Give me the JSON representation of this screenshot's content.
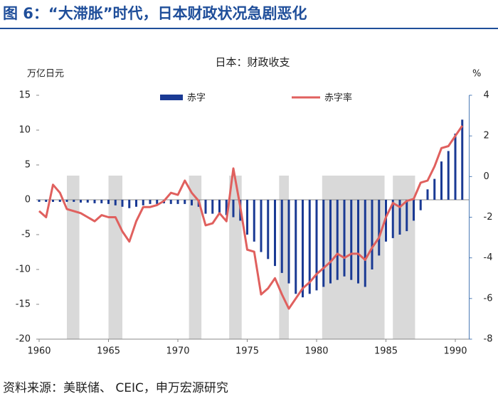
{
  "chart_data": {
    "type": "bar",
    "header": "图 6：“大滞胀”时代，日本财政状况急剧恶化",
    "title": "日本：财政收支",
    "ylabel": "万亿日元",
    "y2label": "%",
    "source": "资料来源：美联储、 CEIC，申万宏源研究",
    "xlim": [
      1960,
      1991
    ],
    "xticks": [
      1960,
      1965,
      1970,
      1975,
      1980,
      1985,
      1990
    ],
    "ylim": [
      -20,
      15
    ],
    "yticks": [
      -20,
      -15,
      -10,
      -5,
      0,
      5,
      10,
      15
    ],
    "y2lim": [
      -8,
      4
    ],
    "y2ticks": [
      -8,
      -6,
      -4,
      -2,
      0,
      2,
      4
    ],
    "shaded_periods": [
      [
        1962.0,
        1962.9
      ],
      [
        1965.0,
        1966.0
      ],
      [
        1970.8,
        1971.7
      ],
      [
        1973.7,
        1974.6
      ],
      [
        1977.3,
        1978.0
      ],
      [
        1980.4,
        1984.9
      ],
      [
        1985.5,
        1987.1
      ]
    ],
    "shade_color": "#d9d9d9",
    "x": [
      1960.0,
      1960.5,
      1961.0,
      1961.5,
      1962.0,
      1962.5,
      1963.0,
      1963.5,
      1964.0,
      1964.5,
      1965.0,
      1965.5,
      1966.0,
      1966.5,
      1967.0,
      1967.5,
      1968.0,
      1968.5,
      1969.0,
      1969.5,
      1970.0,
      1970.5,
      1971.0,
      1971.5,
      1972.0,
      1972.5,
      1973.0,
      1973.5,
      1974.0,
      1974.5,
      1975.0,
      1975.5,
      1976.0,
      1976.5,
      1977.0,
      1977.5,
      1978.0,
      1978.5,
      1979.0,
      1979.5,
      1980.0,
      1980.5,
      1981.0,
      1981.5,
      1982.0,
      1982.5,
      1983.0,
      1983.5,
      1984.0,
      1984.5,
      1985.0,
      1985.5,
      1986.0,
      1986.5,
      1987.0,
      1987.5,
      1988.0,
      1988.5,
      1989.0,
      1989.5,
      1990.0,
      1990.5
    ],
    "series": [
      {
        "name": "赤字",
        "type": "bar",
        "color": "#1a3a94",
        "values": [
          -0.3,
          -0.3,
          -0.3,
          -0.3,
          -0.3,
          -0.3,
          -0.4,
          -0.4,
          -0.5,
          -0.5,
          -0.6,
          -0.8,
          -1.0,
          -1.2,
          -1.0,
          -0.8,
          -0.6,
          -0.6,
          -0.5,
          -0.6,
          -0.6,
          -0.6,
          -0.8,
          -1.0,
          -2.0,
          -2.0,
          -2.0,
          -2.2,
          -2.5,
          -3.0,
          -5.0,
          -6.0,
          -7.5,
          -8.5,
          -9.5,
          -10.5,
          -12.0,
          -13.5,
          -14.0,
          -13.5,
          -13.0,
          -12.5,
          -12.0,
          -11.5,
          -11.0,
          -11.5,
          -12.0,
          -12.5,
          -10.0,
          -8.0,
          -6.0,
          -5.5,
          -5.0,
          -4.5,
          -3.0,
          -1.5,
          1.5,
          3.0,
          5.5,
          7.0,
          9.5,
          11.5
        ]
      },
      {
        "name": "赤字率",
        "type": "line",
        "axis": "y2",
        "color": "#e0605e",
        "values": [
          -1.7,
          -2.0,
          -0.4,
          -0.8,
          -1.6,
          -1.7,
          -1.8,
          -2.0,
          -2.2,
          -1.9,
          -2.0,
          -2.0,
          -2.7,
          -3.2,
          -2.2,
          -1.5,
          -1.5,
          -1.4,
          -1.2,
          -0.8,
          -0.9,
          -0.2,
          -0.8,
          -1.2,
          -2.4,
          -2.3,
          -1.8,
          -2.2,
          0.4,
          -1.5,
          -3.6,
          -3.7,
          -5.8,
          -5.5,
          -5.0,
          -5.8,
          -6.5,
          -6.0,
          -5.5,
          -5.2,
          -4.8,
          -4.5,
          -4.2,
          -3.8,
          -4.0,
          -3.8,
          -3.8,
          -4.1,
          -3.5,
          -3.0,
          -2.0,
          -1.3,
          -1.5,
          -1.2,
          -1.1,
          -0.3,
          -0.2,
          0.5,
          1.4,
          1.5,
          2.0,
          2.5
        ]
      }
    ]
  }
}
